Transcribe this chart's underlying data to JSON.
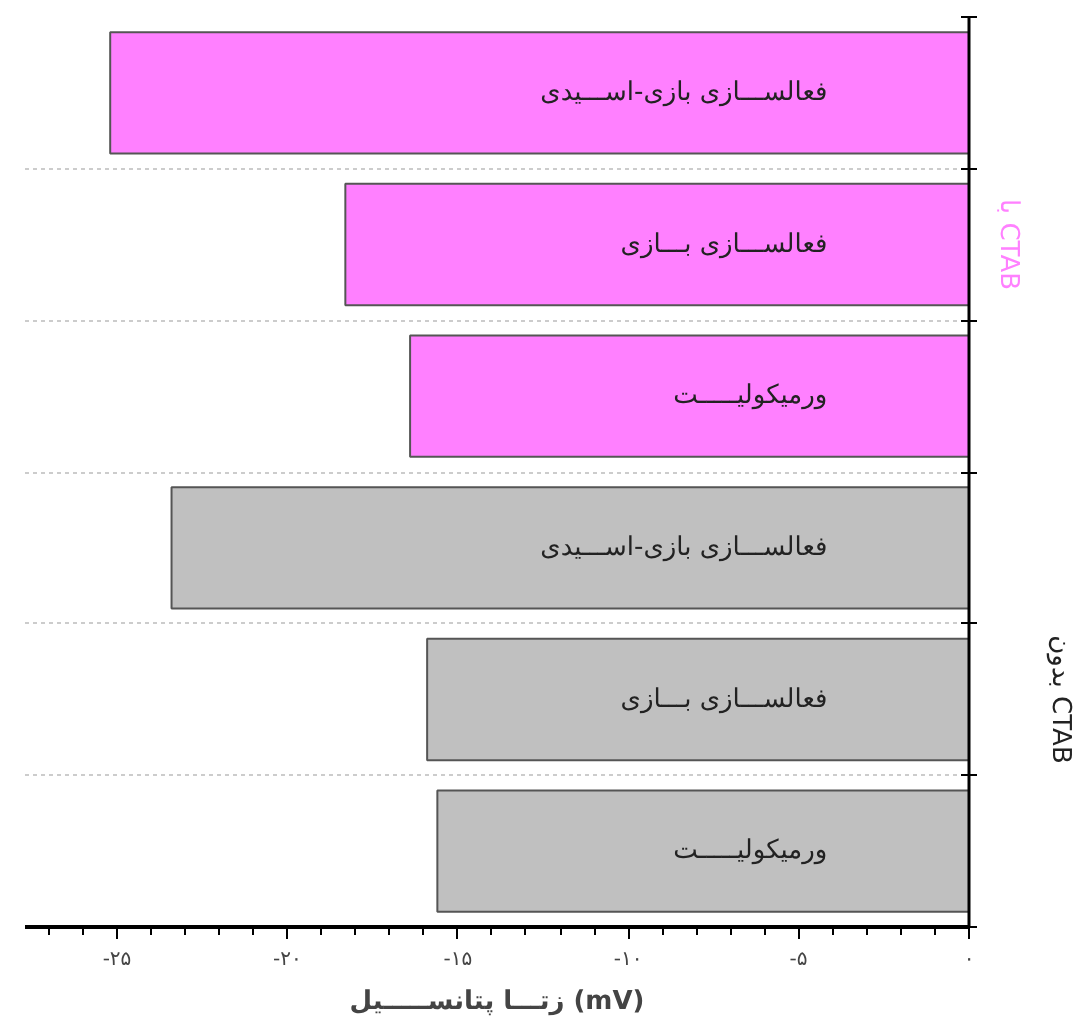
{
  "chart_data": {
    "type": "bar",
    "orientation": "horizontal",
    "xlabel": "زتـــا پتانســـــیل (mV)",
    "categories": [
      "فعالســـازی بازی-اســـیدی",
      "فعالســـازی بـــازی",
      "ورمیکولیـــــت",
      "فعالســـازی بازی-اســـیدی",
      "فعالســـازی بـــازی",
      "ورمیکولیـــــت"
    ],
    "series": [
      {
        "name": "با CTAB",
        "color": "#ff80ff",
        "values": [
          -25.2,
          -18.3,
          -16.4,
          null,
          null,
          null
        ]
      },
      {
        "name": "بدون CTAB",
        "color": "#c0c0c0",
        "values": [
          null,
          null,
          null,
          -23.4,
          -15.9,
          -15.6
        ]
      }
    ],
    "xlim": [
      -27.7,
      0
    ],
    "xticks": [
      {
        "value": -25,
        "label": "-۲۵"
      },
      {
        "value": -20,
        "label": "-۲۰"
      },
      {
        "value": -15,
        "label": "-۱۵"
      },
      {
        "value": -10,
        "label": "-۱۰"
      },
      {
        "value": -5,
        "label": "-۵"
      },
      {
        "value": 0,
        "label": "۰"
      }
    ],
    "grid": "y"
  }
}
